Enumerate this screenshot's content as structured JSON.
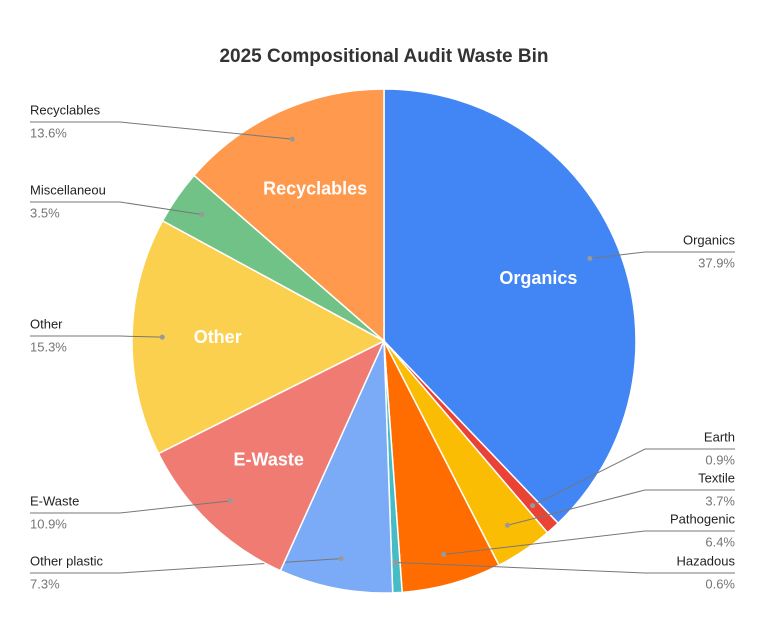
{
  "chart_data": {
    "type": "pie",
    "title": "2025 Compositional Audit Waste Bin",
    "categories": [
      "Organics",
      "Earth",
      "Textile",
      "Pathogenic",
      "Hazadous",
      "Other plastic",
      "E-Waste",
      "Other",
      "Miscellaneou",
      "Recyclables"
    ],
    "values": [
      37.9,
      0.9,
      3.7,
      6.4,
      0.6,
      7.3,
      10.9,
      15.3,
      3.5,
      13.6
    ],
    "value_labels": [
      "37.9%",
      "0.9%",
      "3.7%",
      "6.4%",
      "0.6%",
      "7.3%",
      "10.9%",
      "15.3%",
      "3.5%",
      "13.6%"
    ],
    "colors": [
      "#4285f4",
      "#ea4335",
      "#fbbc04",
      "#ff6d01",
      "#46bdc6",
      "#7baaf7",
      "#f07b72",
      "#fcd04f",
      "#71c287",
      "#ff994d"
    ]
  }
}
